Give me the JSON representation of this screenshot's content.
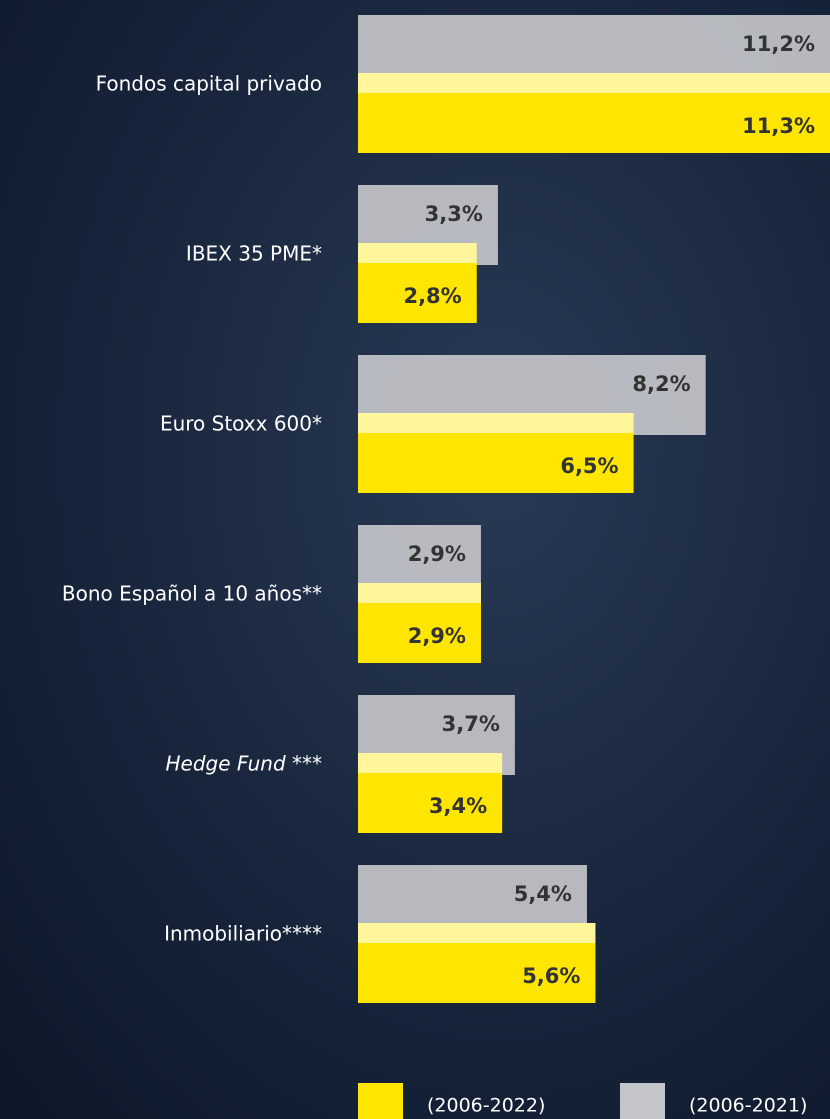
{
  "chart_data": {
    "type": "bar",
    "categories": [
      "Fondos capital privado",
      "IBEX 35 PME*",
      "Euro Stoxx 600*",
      "Bono Español a 10 años**",
      "Hedge Fund ***",
      "Inmobiliario****"
    ],
    "series": [
      {
        "name": "(2006-2022)",
        "color": "#ffe600",
        "values": [
          11.3,
          2.8,
          6.5,
          2.9,
          3.4,
          5.6
        ],
        "value_labels": [
          "11,3%",
          "2,8%",
          "6,5%",
          "2,9%",
          "3,4%",
          "5,6%"
        ]
      },
      {
        "name": "(2006-2021)",
        "color": "#c4c5ca",
        "values": [
          11.2,
          3.3,
          8.2,
          2.9,
          3.7,
          5.4
        ],
        "value_labels": [
          "11,2%",
          "3,3%",
          "8,2%",
          "2,9%",
          "3,7%",
          "5,4%"
        ]
      }
    ]
  }
}
